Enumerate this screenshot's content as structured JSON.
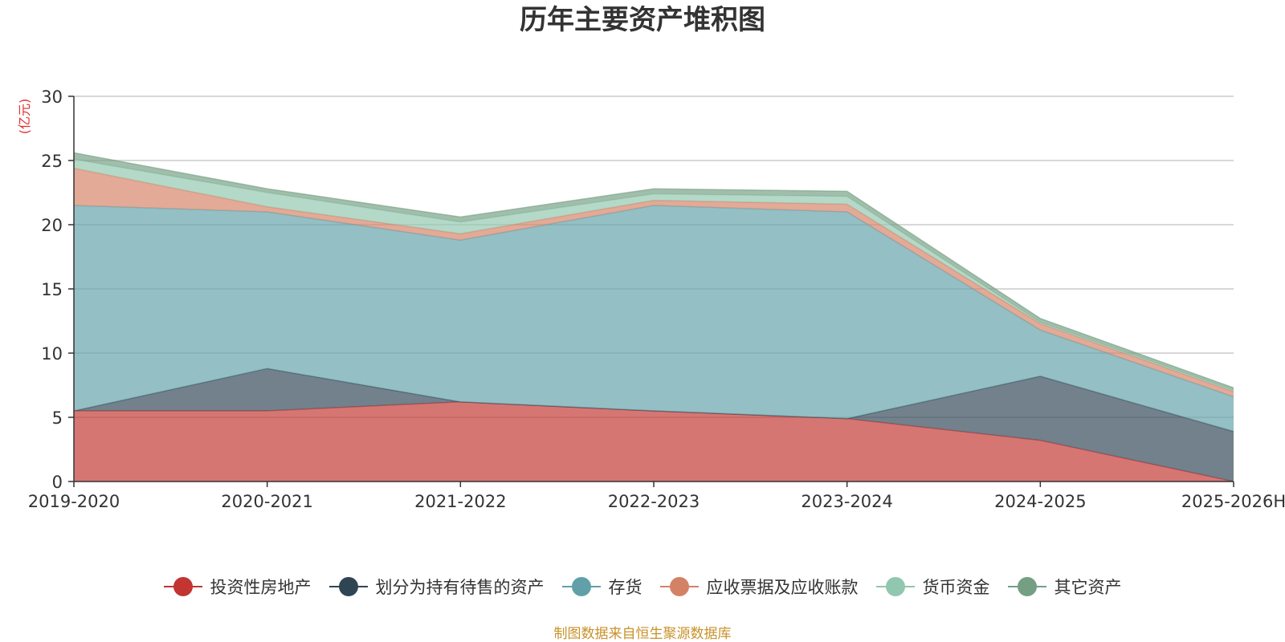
{
  "chart_data": {
    "type": "area",
    "stacked": true,
    "title": "历年主要资产堆积图",
    "ylabel": "(亿元)",
    "xlabel": "",
    "ylim": [
      0,
      30
    ],
    "yticks": [
      0,
      5,
      10,
      15,
      20,
      25,
      30
    ],
    "categories": [
      "2019-2020",
      "2020-2021",
      "2021-2022",
      "2022-2023",
      "2023-2024",
      "2024-2025",
      "2025-2026H"
    ],
    "series": [
      {
        "name": "投资性房地产",
        "color": "#c23531",
        "values": [
          5.5,
          5.5,
          6.2,
          5.5,
          4.9,
          3.2,
          0.0
        ]
      },
      {
        "name": "划分为持有待售的资产",
        "color": "#2f4554",
        "values": [
          0.0,
          3.3,
          0.0,
          0.0,
          0.0,
          5.0,
          3.9
        ]
      },
      {
        "name": "存货",
        "color": "#61a0a8",
        "values": [
          16.0,
          12.2,
          12.6,
          16.0,
          16.1,
          3.6,
          2.7
        ]
      },
      {
        "name": "应收票据及应收账款",
        "color": "#d48265",
        "values": [
          2.9,
          0.4,
          0.5,
          0.4,
          0.6,
          0.5,
          0.4
        ]
      },
      {
        "name": "货币资金",
        "color": "#91c7ae",
        "values": [
          0.7,
          1.1,
          0.9,
          0.5,
          0.6,
          0.1,
          0.1
        ]
      },
      {
        "name": "其它资产",
        "color": "#749f83",
        "values": [
          0.5,
          0.3,
          0.4,
          0.4,
          0.4,
          0.3,
          0.2
        ]
      }
    ],
    "legend_position": "bottom-center",
    "grid": true
  },
  "source_note": "制图数据来自恒生聚源数据库"
}
